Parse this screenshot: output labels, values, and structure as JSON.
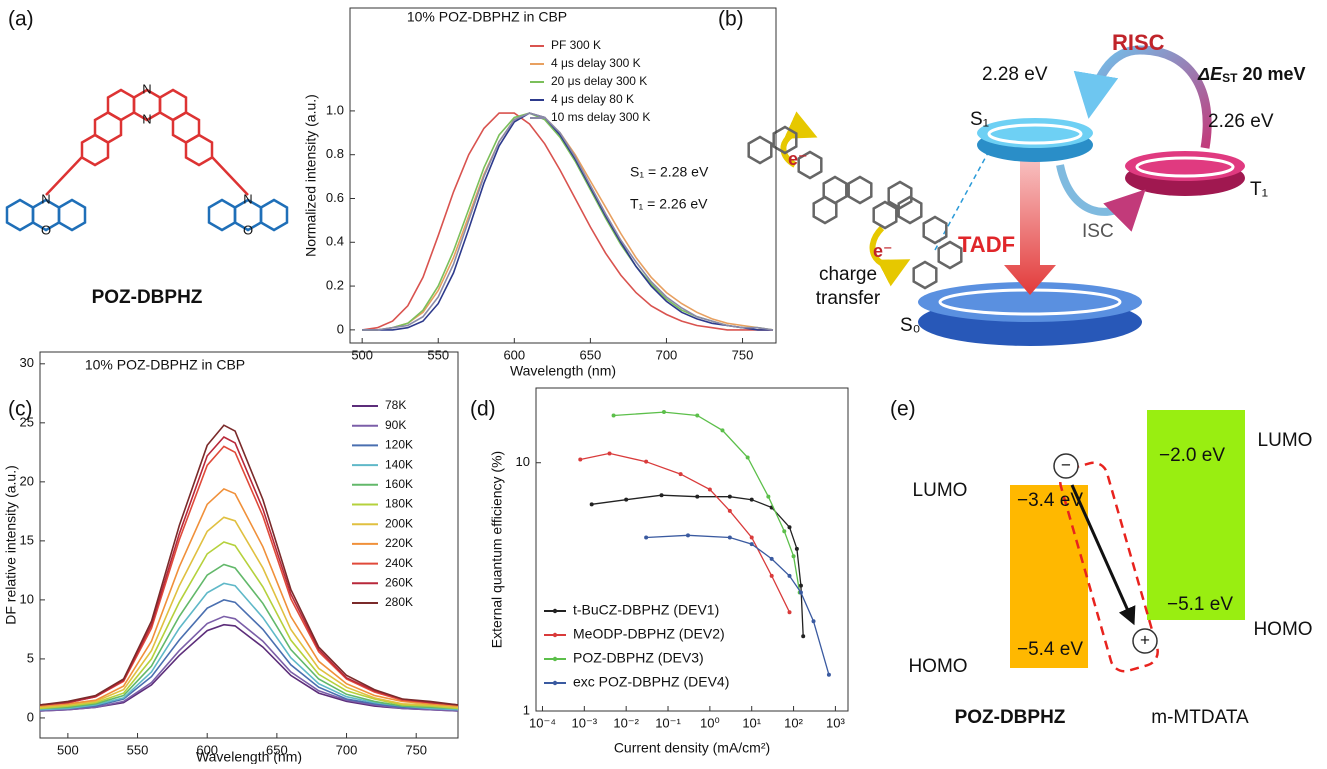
{
  "panel_labels": [
    "(a)",
    "(b)",
    "(c)",
    "(d)",
    "(e)"
  ],
  "structure_a": {
    "name": "POZ-DBPHZ",
    "atoms": [
      "N",
      "N",
      "N",
      "O",
      "N",
      "O"
    ]
  },
  "chart_data": [
    {
      "type": "line",
      "title": "10% POZ-DBPHZ in CBP",
      "x_label": "Wavelength (nm)",
      "y_label": "Normalized intensity (a.u.)",
      "xlim": [
        492,
        772
      ],
      "ylim": [
        -0.06,
        1.47
      ],
      "xticks": [
        500,
        550,
        600,
        650,
        700,
        750
      ],
      "yticks": [
        0,
        0.2,
        0.4,
        0.6,
        0.8,
        {
          "value": 1,
          "label": "1.0"
        }
      ],
      "legend": "upper right",
      "annotations": [
        "S₁ = 2.28 eV",
        "T₁ = 2.26 eV"
      ],
      "x": [
        500,
        510,
        520,
        530,
        540,
        550,
        560,
        570,
        580,
        590,
        600,
        610,
        620,
        630,
        640,
        650,
        660,
        670,
        680,
        690,
        700,
        710,
        720,
        730,
        740,
        750,
        760,
        770
      ],
      "series": [
        {
          "name": "PF 300 K",
          "color": "#d9534f",
          "values": [
            0,
            0.01,
            0.04,
            0.11,
            0.24,
            0.43,
            0.63,
            0.8,
            0.92,
            0.99,
            0.99,
            0.94,
            0.85,
            0.73,
            0.6,
            0.47,
            0.35,
            0.25,
            0.17,
            0.11,
            0.07,
            0.04,
            0.02,
            0.01,
            0,
            0,
            0,
            0
          ]
        },
        {
          "name": "4 μs delay 300 K",
          "color": "#e8a060",
          "values": [
            0,
            0,
            0.01,
            0.03,
            0.08,
            0.18,
            0.33,
            0.52,
            0.71,
            0.86,
            0.96,
            0.99,
            0.97,
            0.9,
            0.8,
            0.68,
            0.56,
            0.44,
            0.33,
            0.24,
            0.17,
            0.12,
            0.08,
            0.05,
            0.03,
            0.02,
            0.01,
            0
          ]
        },
        {
          "name": "20 μs delay 300 K",
          "color": "#7bbf5a",
          "values": [
            0,
            0,
            0.01,
            0.03,
            0.09,
            0.2,
            0.36,
            0.55,
            0.74,
            0.89,
            0.97,
            0.99,
            0.96,
            0.88,
            0.77,
            0.64,
            0.51,
            0.39,
            0.29,
            0.21,
            0.14,
            0.09,
            0.06,
            0.04,
            0.02,
            0.01,
            0.01,
            0
          ]
        },
        {
          "name": "4 μs delay 80 K",
          "color": "#2d3a8c",
          "values": [
            0,
            0,
            0,
            0.01,
            0.04,
            0.12,
            0.26,
            0.46,
            0.67,
            0.84,
            0.95,
            0.99,
            0.97,
            0.89,
            0.78,
            0.65,
            0.52,
            0.4,
            0.29,
            0.2,
            0.13,
            0.08,
            0.05,
            0.03,
            0.02,
            0.01,
            0,
            0
          ]
        },
        {
          "name": "10 ms delay 300 K",
          "color": "#8a8aa8",
          "values": [
            0,
            0,
            0.01,
            0.02,
            0.06,
            0.15,
            0.3,
            0.5,
            0.7,
            0.86,
            0.96,
            0.99,
            0.97,
            0.9,
            0.79,
            0.66,
            0.53,
            0.41,
            0.31,
            0.22,
            0.15,
            0.1,
            0.06,
            0.04,
            0.02,
            0.01,
            0.01,
            0
          ]
        }
      ]
    },
    {
      "type": "line",
      "title": "10% POZ-DBPHZ in CBP",
      "x_label": "Wavelength (nm)",
      "y_label": "DF relative intensity (a.u.)",
      "xlim": [
        480,
        780
      ],
      "ylim": [
        -1.7,
        31
      ],
      "xticks": [
        500,
        550,
        600,
        650,
        700,
        750
      ],
      "yticks": [
        0,
        5,
        10,
        15,
        20,
        25,
        30
      ],
      "legend": "upper right",
      "x": [
        480,
        500,
        520,
        540,
        560,
        580,
        600,
        612,
        620,
        640,
        660,
        680,
        700,
        720,
        740,
        760,
        780
      ],
      "series": [
        {
          "name": "78K",
          "color": "#5c2d7a",
          "values": [
            0.6,
            0.7,
            0.9,
            1.3,
            2.8,
            5.3,
            7.4,
            7.9,
            7.8,
            6.0,
            3.6,
            2.1,
            1.4,
            1.0,
            0.8,
            0.7,
            0.6
          ]
        },
        {
          "name": "90K",
          "color": "#7b5ea8",
          "values": [
            0.6,
            0.7,
            0.9,
            1.4,
            3.0,
            5.7,
            8.0,
            8.6,
            8.4,
            6.5,
            3.9,
            2.3,
            1.5,
            1.1,
            0.8,
            0.7,
            0.6
          ]
        },
        {
          "name": "120K",
          "color": "#4a6fb0",
          "values": [
            0.7,
            0.8,
            1.0,
            1.6,
            3.5,
            6.6,
            9.3,
            10.0,
            9.8,
            7.5,
            4.5,
            2.6,
            1.6,
            1.2,
            0.9,
            0.8,
            0.7
          ]
        },
        {
          "name": "140K",
          "color": "#5fb8c8",
          "values": [
            0.7,
            0.8,
            1.1,
            1.7,
            3.9,
            7.6,
            10.6,
            11.4,
            11.2,
            8.5,
            5.1,
            2.9,
            1.8,
            1.3,
            1.0,
            0.8,
            0.7
          ]
        },
        {
          "name": "160K",
          "color": "#62b86a",
          "values": [
            0.8,
            0.9,
            1.2,
            1.9,
            4.4,
            8.6,
            12.1,
            13.0,
            12.7,
            9.7,
            5.8,
            3.3,
            2.0,
            1.4,
            1.0,
            0.9,
            0.8
          ]
        },
        {
          "name": "180K",
          "color": "#b5d13c",
          "values": [
            0.8,
            1.0,
            1.3,
            2.1,
            5.0,
            9.8,
            13.9,
            14.9,
            14.6,
            11.1,
            6.6,
            3.7,
            2.3,
            1.6,
            1.1,
            1.0,
            0.8
          ]
        },
        {
          "name": "200K",
          "color": "#e0c040",
          "values": [
            0.9,
            1.1,
            1.4,
            2.4,
            5.7,
            11.2,
            15.8,
            17.0,
            16.7,
            12.7,
            7.5,
            4.2,
            2.6,
            1.7,
            1.2,
            1.1,
            0.9
          ]
        },
        {
          "name": "220K",
          "color": "#f0903a",
          "values": [
            1.0,
            1.2,
            1.5,
            2.7,
            6.5,
            12.8,
            18.1,
            19.4,
            19.0,
            14.5,
            8.6,
            4.8,
            2.9,
            1.9,
            1.4,
            1.2,
            1.0
          ]
        },
        {
          "name": "240K",
          "color": "#e04a3a",
          "values": [
            1.1,
            1.3,
            1.8,
            3.1,
            7.6,
            15.1,
            21.4,
            23.0,
            22.5,
            17.1,
            10.1,
            5.6,
            3.3,
            2.2,
            1.5,
            1.3,
            1.1
          ]
        },
        {
          "name": "260K",
          "color": "#b8283a",
          "values": [
            1.1,
            1.3,
            1.8,
            3.2,
            7.9,
            15.6,
            22.2,
            23.8,
            23.3,
            17.7,
            10.5,
            5.8,
            3.4,
            2.3,
            1.6,
            1.3,
            1.1
          ]
        },
        {
          "name": "280K",
          "color": "#7a2a2a",
          "values": [
            1.1,
            1.4,
            1.9,
            3.3,
            8.2,
            16.3,
            23.1,
            24.8,
            24.3,
            18.5,
            10.9,
            6.0,
            3.6,
            2.4,
            1.6,
            1.4,
            1.1
          ]
        }
      ]
    },
    {
      "type": "line",
      "x_label": "Current density (mA/cm²)",
      "y_label": "External quantum efficiency (%)",
      "log_x": true,
      "log_y": true,
      "markers": true,
      "xlim": [
        7e-05,
        2000
      ],
      "ylim": [
        1,
        20
      ],
      "xticks": [
        {
          "value": 0.0001,
          "label": "10⁻⁴"
        },
        {
          "value": 0.001,
          "label": "10⁻³"
        },
        {
          "value": 0.01,
          "label": "10⁻²"
        },
        {
          "value": 0.1,
          "label": "10⁻¹"
        },
        {
          "value": 1,
          "label": "10⁰"
        },
        {
          "value": 10,
          "label": "10¹"
        },
        {
          "value": 100,
          "label": "10²"
        },
        {
          "value": 1000,
          "label": "10³"
        }
      ],
      "yticks": [
        1,
        10
      ],
      "legend": "lower left",
      "series": [
        {
          "name": "t-BuCZ-DBPHZ (DEV1)",
          "color": "#222222",
          "x": [
            0.0015,
            0.01,
            0.07,
            0.5,
            3,
            10,
            30,
            80,
            120,
            150,
            170
          ],
          "values": [
            6.8,
            7.1,
            7.4,
            7.3,
            7.3,
            7.1,
            6.6,
            5.5,
            4.5,
            3.2,
            2.0
          ]
        },
        {
          "name": "MeODP-DBPHZ (DEV2)",
          "color": "#d93b3b",
          "x": [
            0.0008,
            0.004,
            0.03,
            0.2,
            1,
            3,
            10,
            30,
            80
          ],
          "values": [
            10.3,
            10.9,
            10.1,
            9.0,
            7.8,
            6.4,
            5.0,
            3.5,
            2.5
          ]
        },
        {
          "name": "POZ-DBPHZ (DEV3)",
          "color": "#5cbf4a",
          "x": [
            0.005,
            0.08,
            0.5,
            2,
            8,
            25,
            60,
            100,
            140
          ],
          "values": [
            15.5,
            16.0,
            15.5,
            13.5,
            10.5,
            7.3,
            5.3,
            4.2,
            3.0
          ]
        },
        {
          "name": "exc POZ-DBPHZ (DEV4)",
          "color": "#3a5aa0",
          "x": [
            0.03,
            0.3,
            3,
            10,
            30,
            80,
            150,
            300,
            700
          ],
          "values": [
            5.0,
            5.1,
            5.0,
            4.7,
            4.1,
            3.5,
            3.0,
            2.3,
            1.4
          ]
        }
      ]
    }
  ],
  "diagram_b": {
    "risc": "RISC",
    "delta_e": "ΔE",
    "st": "ST",
    "gap": " 20 meV",
    "s1_energy": "2.28 eV",
    "s1": "S₁",
    "t1_energy": "2.26 eV",
    "t1": "T₁",
    "electron": [
      "e⁻",
      "e⁻"
    ],
    "charge_transfer": [
      "charge",
      "transfer"
    ],
    "tadf": "TADF",
    "isc": "ISC",
    "s0": "S₀"
  },
  "diagram_e": {
    "lumo_left": "LUMO",
    "homo_left": "HOMO",
    "lumo_right": "LUMO",
    "homo_right": "HOMO",
    "poz_lumo": "−3.4 eV",
    "poz_homo": "−5.4 eV",
    "mt_lumo": "−2.0 eV",
    "mt_homo": "−5.1 eV",
    "minus": "−",
    "plus": "+",
    "acceptor_name": "POZ-DBPHZ",
    "donor_name": "m-MTDATA"
  }
}
